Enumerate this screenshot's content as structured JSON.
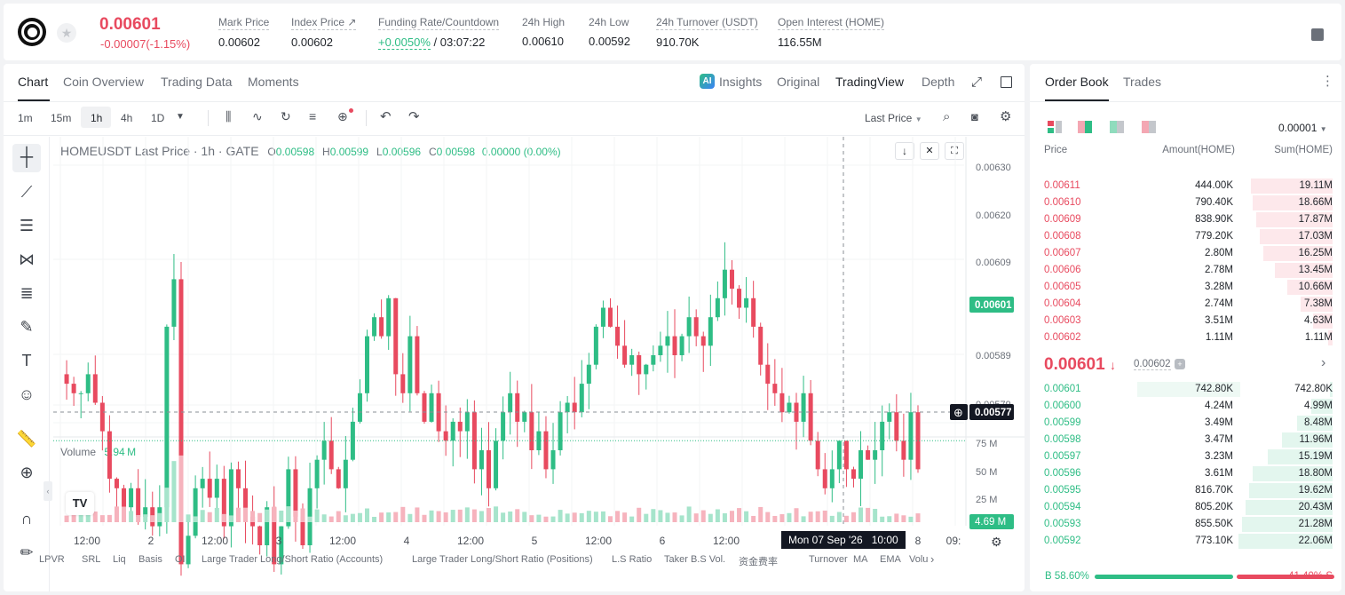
{
  "header": {
    "last_price": "0.00601",
    "change": "-0.00007(-1.15%)",
    "stats": [
      {
        "label": "Mark Price",
        "value": "0.00602"
      },
      {
        "label": "Index Price ↗",
        "value": "0.00602"
      },
      {
        "label": "Funding Rate/Countdown",
        "value_green": "+0.0050%",
        "value": "/ 03:07:22"
      },
      {
        "label": "24h High",
        "value": "0.00610"
      },
      {
        "label": "24h Low",
        "value": "0.00592"
      },
      {
        "label": "24h Turnover (USDT)",
        "value": "910.70K"
      },
      {
        "label": "Open Interest (HOME)",
        "value": "116.55M"
      }
    ]
  },
  "chart_tabs": [
    "Chart",
    "Coin Overview",
    "Trading Data",
    "Moments"
  ],
  "chart_views": {
    "insights": "Insights",
    "original": "Original",
    "tradingview": "TradingView",
    "depth": "Depth"
  },
  "timeframes": [
    "1m",
    "15m",
    "1h",
    "4h",
    "1D"
  ],
  "price_type": "Last Price",
  "legend": {
    "symbol": "HOMEUSDT Last Price · 1h · GATE",
    "o_label": "O",
    "o": "0.00598",
    "h_label": "H",
    "h": "0.00599",
    "l_label": "L",
    "l": "0.00596",
    "c_label": "C",
    "c": "0.00598",
    "chg": "0.00000 (0.00%)"
  },
  "volume": {
    "label": "Volume",
    "value": "5.94 M",
    "axis": [
      "75 M",
      "50 M",
      "25 M"
    ],
    "current": "4.69 M"
  },
  "price_axis": [
    "0.00630",
    "0.00620",
    "0.00609",
    "0.00601",
    "0.00589",
    "0.00579",
    "0.00577"
  ],
  "time_axis": [
    "12:00",
    "2",
    "12:00",
    "3",
    "12:00",
    "4",
    "12:00",
    "5",
    "12:00",
    "6",
    "12:00",
    "8",
    "09:"
  ],
  "crosshair_time": "Mon 07 Sep '26",
  "crosshair_hour": "10:00",
  "bottom_indicators": [
    "LPVR",
    "SRL",
    "Liq",
    "Basis",
    "OI",
    "Large Trader Long/Short Ratio (Accounts)",
    "Large Trader Long/Short Ratio (Positions)",
    "L.S Ratio",
    "Taker B.S Vol.",
    "资金费率",
    "Turnover",
    "MA",
    "EMA",
    "Volu"
  ],
  "orderbook": {
    "tabs": [
      "Order Book",
      "Trades"
    ],
    "precision": "0.00001",
    "headers": [
      "Price",
      "Amount(HOME)",
      "Sum(HOME)"
    ],
    "asks": [
      {
        "p": "0.00611",
        "a": "444.00K",
        "s": "19.11M",
        "f": 0.87
      },
      {
        "p": "0.00610",
        "a": "790.40K",
        "s": "18.66M",
        "f": 0.85
      },
      {
        "p": "0.00609",
        "a": "838.90K",
        "s": "17.87M",
        "f": 0.81
      },
      {
        "p": "0.00608",
        "a": "779.20K",
        "s": "17.03M",
        "f": 0.77
      },
      {
        "p": "0.00607",
        "a": "2.80M",
        "s": "16.25M",
        "f": 0.74
      },
      {
        "p": "0.00606",
        "a": "2.78M",
        "s": "13.45M",
        "f": 0.61
      },
      {
        "p": "0.00605",
        "a": "3.28M",
        "s": "10.66M",
        "f": 0.48
      },
      {
        "p": "0.00604",
        "a": "2.74M",
        "s": "7.38M",
        "f": 0.34
      },
      {
        "p": "0.00603",
        "a": "3.51M",
        "s": "4.63M",
        "f": 0.21
      },
      {
        "p": "0.00602",
        "a": "1.11M",
        "s": "1.11M",
        "f": 0.05
      }
    ],
    "mid_price": "0.00601",
    "mid_mark": "0.00602",
    "bids": [
      {
        "p": "0.00601",
        "a": "742.80K",
        "s": "742.80K",
        "f": 0.03
      },
      {
        "p": "0.00600",
        "a": "4.24M",
        "s": "4.99M",
        "f": 0.23
      },
      {
        "p": "0.00599",
        "a": "3.49M",
        "s": "8.48M",
        "f": 0.38
      },
      {
        "p": "0.00598",
        "a": "3.47M",
        "s": "11.96M",
        "f": 0.54
      },
      {
        "p": "0.00597",
        "a": "3.23M",
        "s": "15.19M",
        "f": 0.69
      },
      {
        "p": "0.00596",
        "a": "3.61M",
        "s": "18.80M",
        "f": 0.85
      },
      {
        "p": "0.00595",
        "a": "816.70K",
        "s": "19.62M",
        "f": 0.89
      },
      {
        "p": "0.00594",
        "a": "805.20K",
        "s": "20.43M",
        "f": 0.92
      },
      {
        "p": "0.00593",
        "a": "855.50K",
        "s": "21.28M",
        "f": 0.96
      },
      {
        "p": "0.00592",
        "a": "773.10K",
        "s": "22.06M",
        "f": 1.0
      }
    ],
    "buy_ratio": "58.60%",
    "sell_ratio": "41.40%",
    "buy_fraction": 0.586
  }
}
